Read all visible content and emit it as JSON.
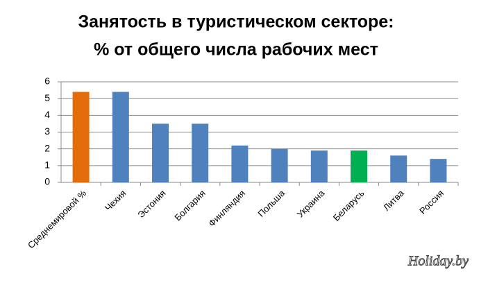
{
  "chart_data": {
    "type": "bar",
    "title": [
      "Занятость в туристическом секторе:",
      "% от общего числа рабочих мест"
    ],
    "categories": [
      "Среднемировой %",
      "Чехия",
      "Эстония",
      "Болгария",
      "Финляндия",
      "Польша",
      "Украина",
      "Беларусь",
      "Литва",
      "Россия"
    ],
    "values": [
      5.4,
      5.4,
      3.5,
      3.5,
      2.2,
      2.0,
      1.9,
      1.9,
      1.6,
      1.4
    ],
    "colors": [
      "#e46c0a",
      "#4f81bd",
      "#4f81bd",
      "#4f81bd",
      "#4f81bd",
      "#4f81bd",
      "#4f81bd",
      "#00b050",
      "#4f81bd",
      "#4f81bd"
    ],
    "ylim": [
      0,
      6
    ],
    "yticks": [
      0,
      1,
      2,
      3,
      4,
      5,
      6
    ],
    "grid": true,
    "annotation": "Holiday.by"
  }
}
